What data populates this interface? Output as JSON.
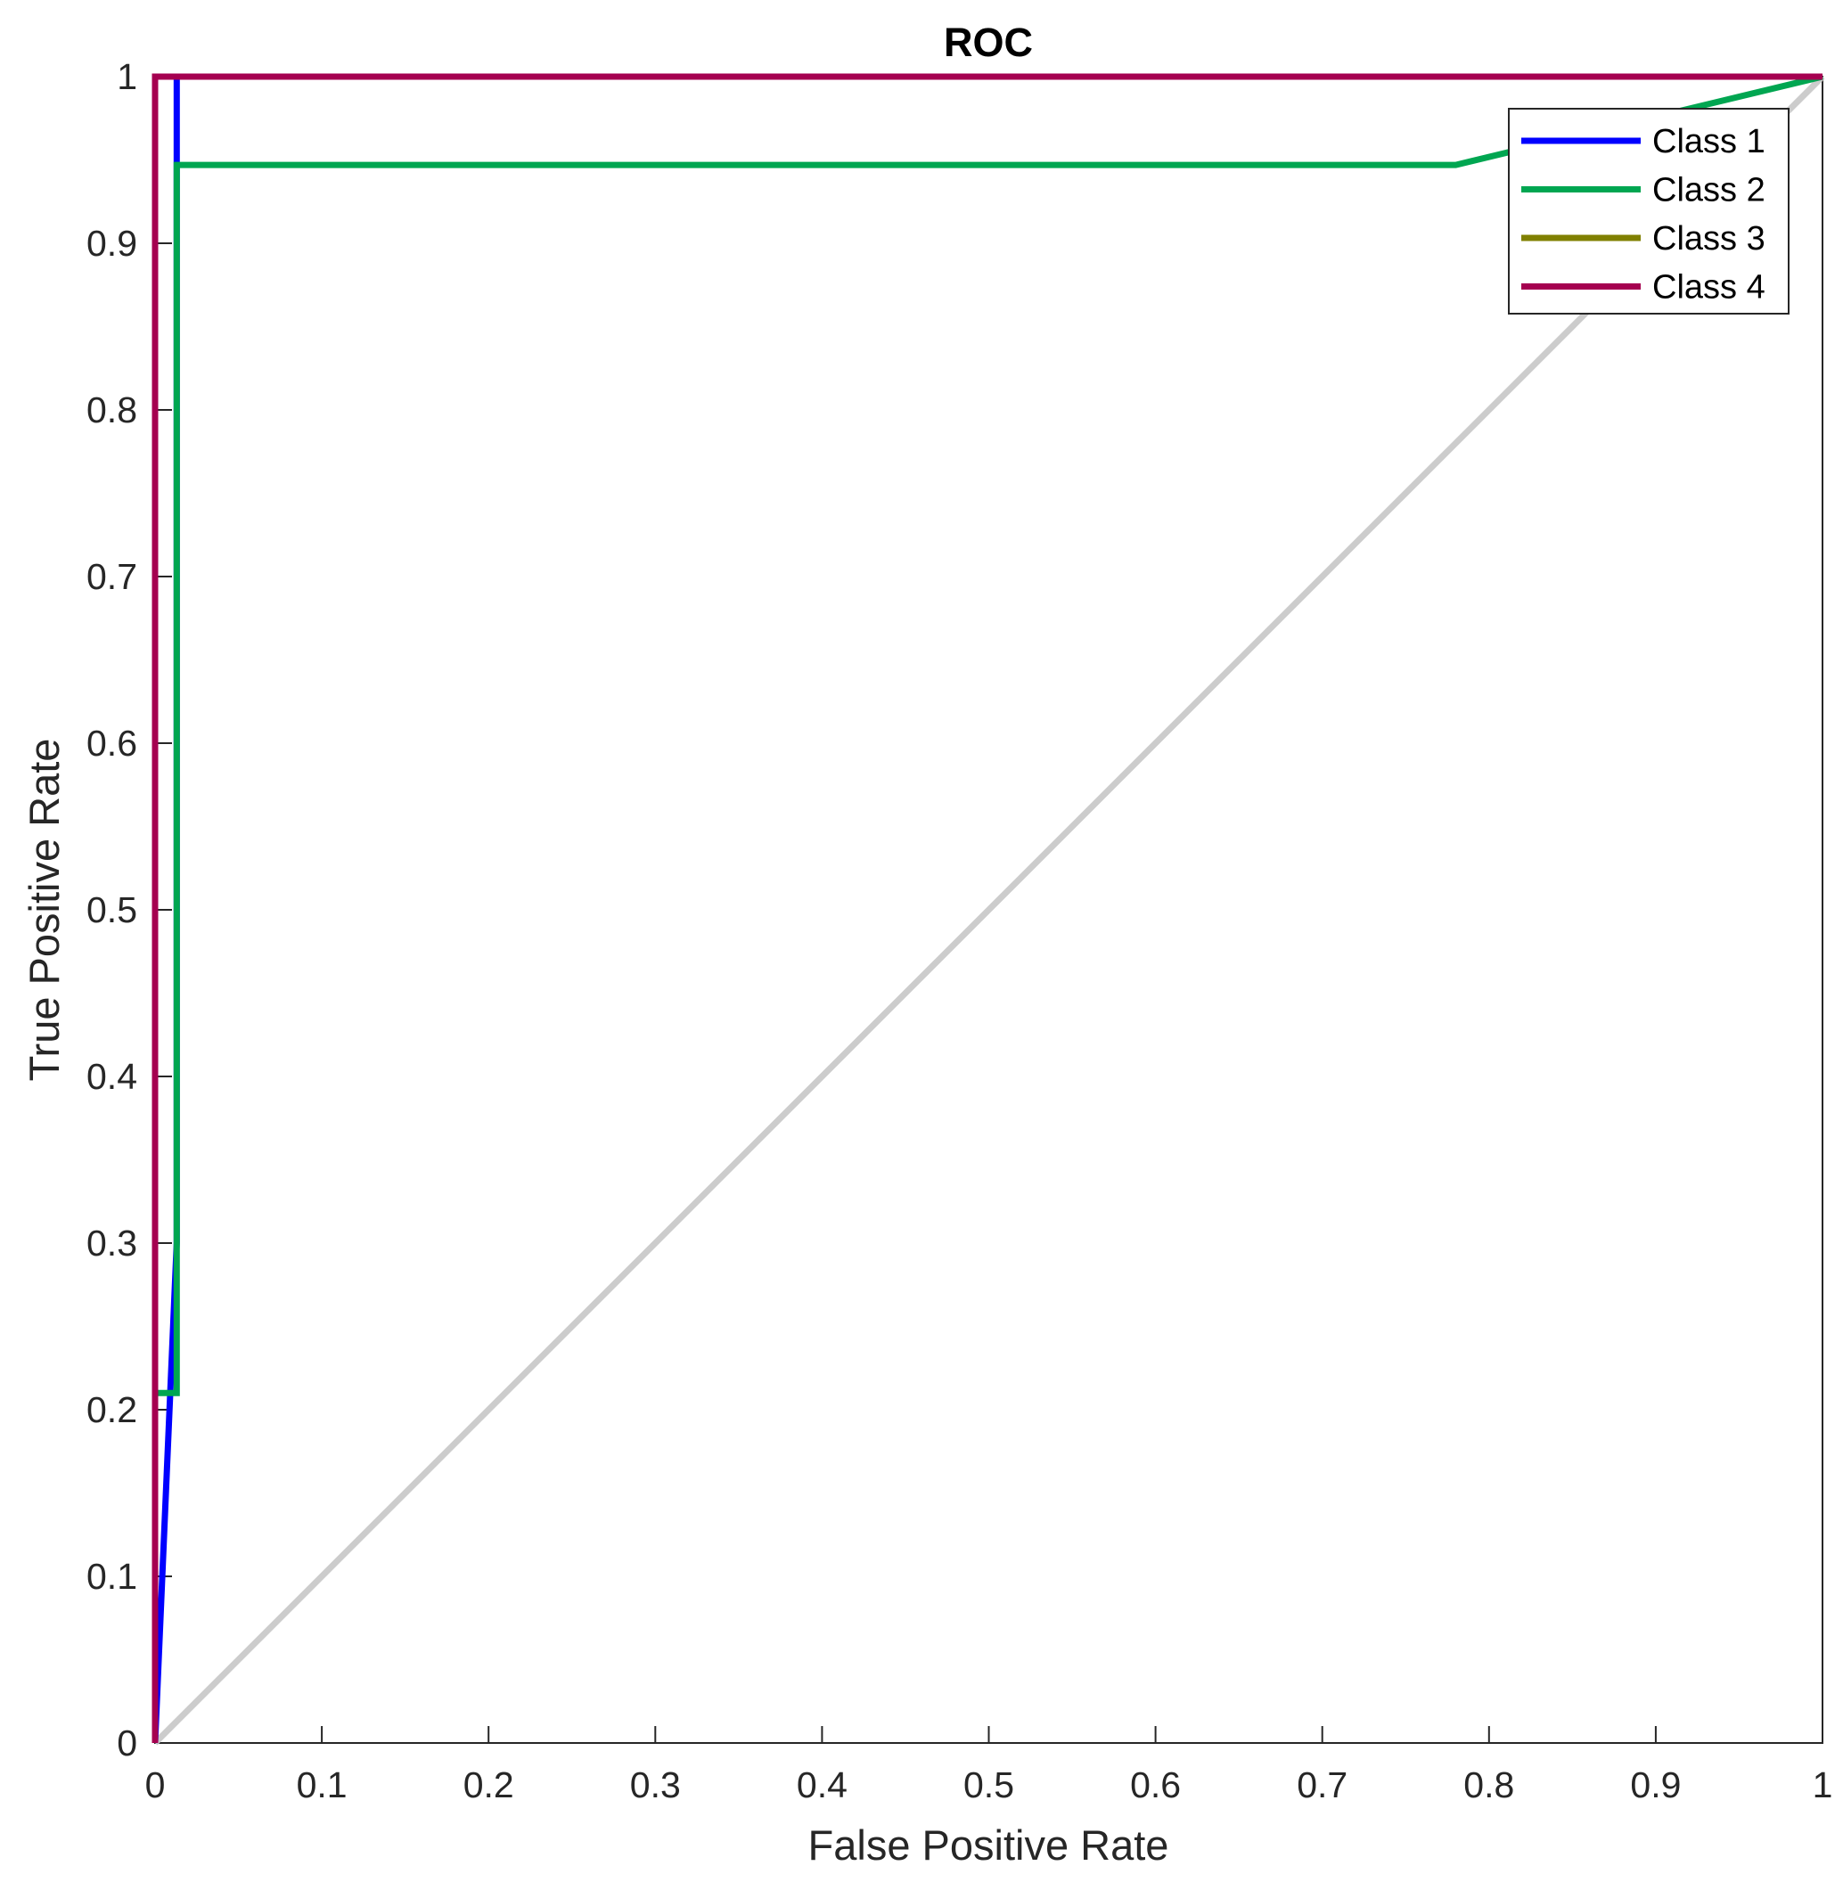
{
  "chart_data": {
    "type": "line",
    "title": "ROC",
    "xlabel": "False Positive Rate",
    "ylabel": "True Positive Rate",
    "xlim": [
      0,
      1
    ],
    "ylim": [
      0,
      1
    ],
    "xticks": [
      "0",
      "0.1",
      "0.2",
      "0.3",
      "0.4",
      "0.5",
      "0.6",
      "0.7",
      "0.8",
      "0.9",
      "1"
    ],
    "yticks": [
      "0",
      "0.1",
      "0.2",
      "0.3",
      "0.4",
      "0.5",
      "0.6",
      "0.7",
      "0.8",
      "0.9",
      "1"
    ],
    "grid": false,
    "legend_position": "top-right",
    "reference_line": {
      "x": [
        0,
        1
      ],
      "y": [
        0,
        1
      ],
      "color": "#cccccc"
    },
    "series": [
      {
        "name": "Class 1",
        "color": "#0000ff",
        "x": [
          0,
          0.013,
          0.013,
          1
        ],
        "y": [
          0,
          0.3,
          1,
          1
        ]
      },
      {
        "name": "Class 2",
        "color": "#00a651",
        "x": [
          0,
          0.013,
          0.013,
          0.78,
          1
        ],
        "y": [
          0.21,
          0.21,
          0.947,
          0.947,
          1
        ]
      },
      {
        "name": "Class 3",
        "color": "#808000",
        "x": [
          0,
          0,
          1
        ],
        "y": [
          0,
          1,
          1
        ]
      },
      {
        "name": "Class 4",
        "color": "#a50050",
        "x": [
          0,
          0,
          1
        ],
        "y": [
          0,
          1,
          1
        ]
      }
    ]
  }
}
